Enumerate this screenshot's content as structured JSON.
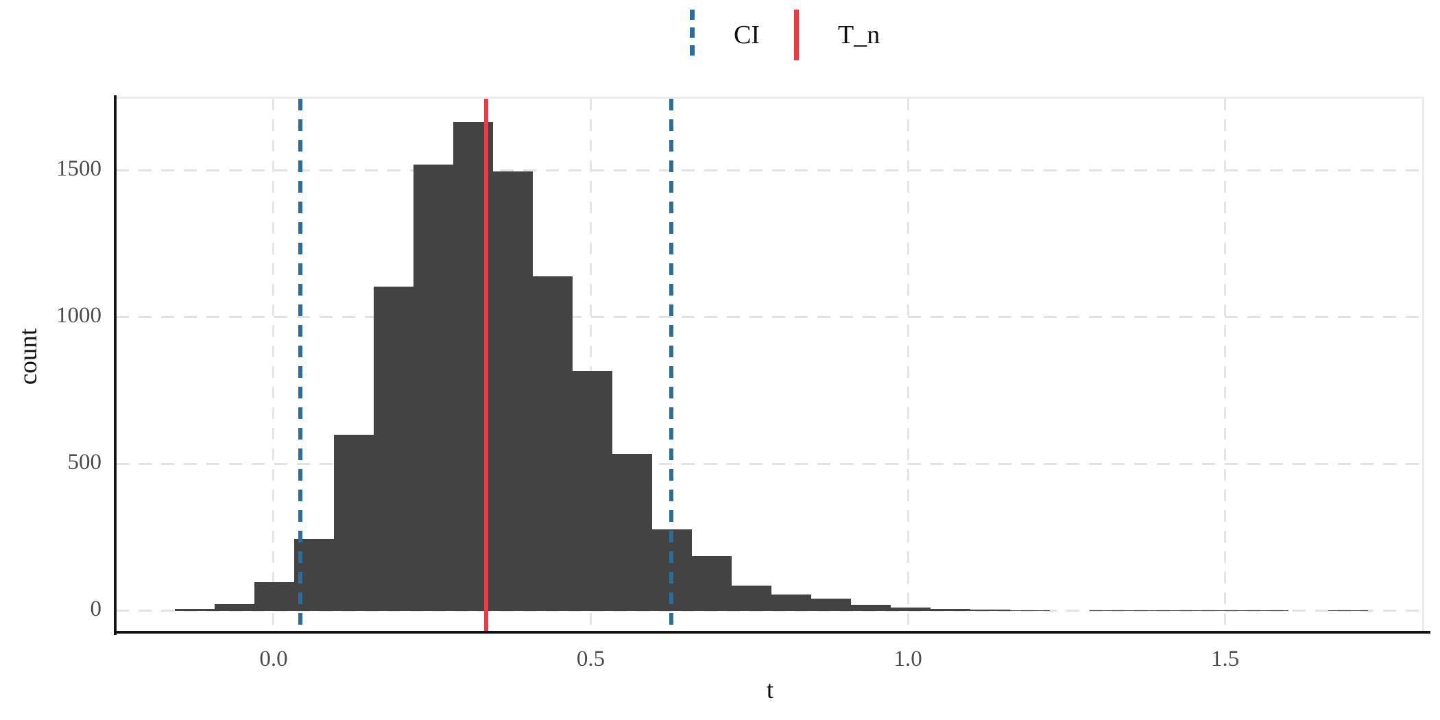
{
  "figure": {
    "legend": {
      "items": [
        {
          "label": "CI",
          "style": "dashed",
          "color": "#2d6d98"
        },
        {
          "label": "T_n",
          "style": "solid",
          "color": "#ee3a44"
        }
      ]
    },
    "y_axis": {
      "title": "count",
      "tick_labels": [
        "0",
        "500",
        "1000",
        "1500"
      ]
    },
    "x_axis": {
      "title": "t",
      "tick_labels": [
        "0.0",
        "0.5",
        "1.0",
        "1.5"
      ]
    }
  },
  "chart_data": {
    "type": "bar",
    "subtype": "histogram",
    "title": "",
    "xlabel": "t",
    "ylabel": "count",
    "bin_start": -0.156,
    "bin_width": 0.0627,
    "counts": [
      7,
      23,
      98,
      245,
      600,
      1105,
      1520,
      1665,
      1497,
      1140,
      818,
      535,
      278,
      187,
      87,
      56,
      42,
      21,
      10,
      6,
      3,
      2,
      0,
      2,
      1,
      1,
      1,
      1,
      0,
      1
    ],
    "bar_color": "#434343",
    "x_ticks": [
      0.0,
      0.5,
      1.0,
      1.5
    ],
    "y_ticks": [
      0,
      500,
      1000,
      1500
    ],
    "xlim": [
      -0.2486,
      1.8139
    ],
    "ylim": [
      -80,
      1745
    ],
    "grid": {
      "style": "dashed",
      "color": "#e2e2e2",
      "minor": false
    },
    "legend_position": "top",
    "vlines": [
      {
        "name": "CI-lower",
        "x": 0.042,
        "style": "dashed",
        "color": "#2d6d98",
        "legend": "CI"
      },
      {
        "name": "CI-upper",
        "x": 0.627,
        "style": "dashed",
        "color": "#2d6d98",
        "legend": "CI"
      },
      {
        "name": "T_n",
        "x": 0.335,
        "style": "solid",
        "color": "#ee3a44",
        "legend": "T_n"
      }
    ]
  },
  "layout_note": "histogram of bootstrap statistic t with confidence-interval bounds and observed statistic T_n"
}
